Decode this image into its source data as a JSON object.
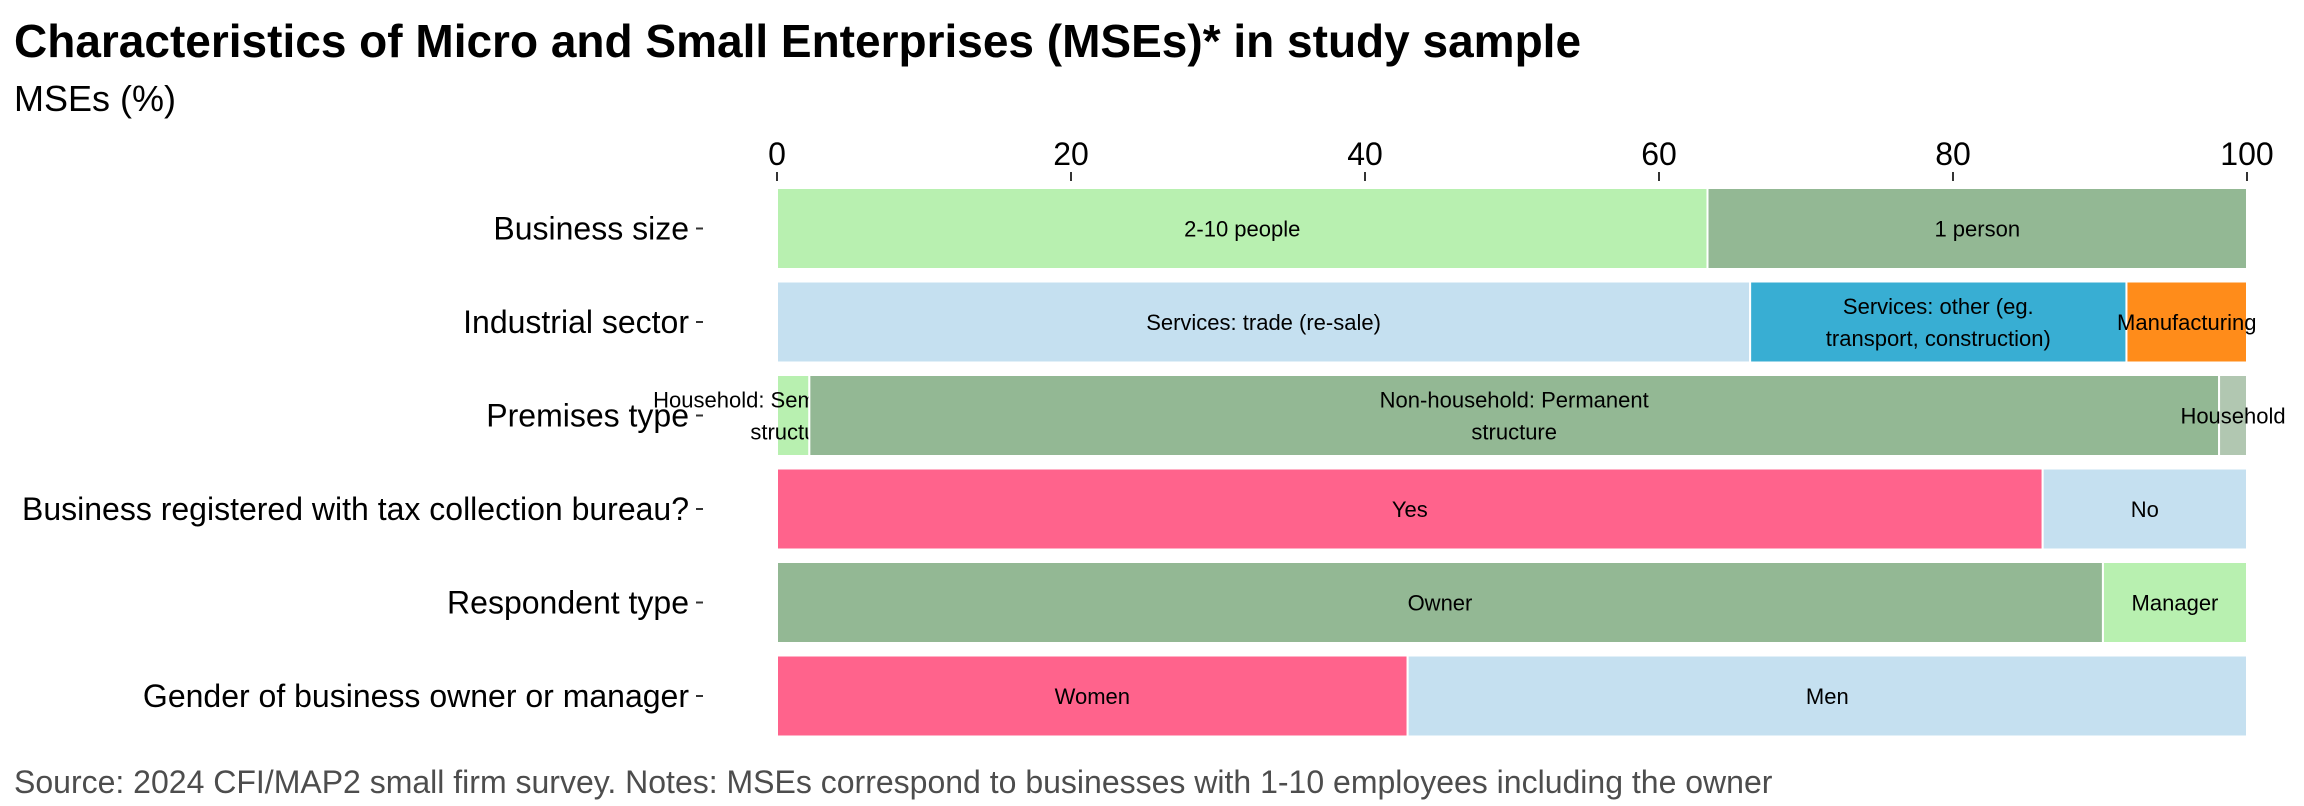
{
  "title": "Characteristics of Micro and Small Enterprises (MSEs)* in study sample",
  "subtitle": "MSEs (%)",
  "caption": "Source: 2024 CFI/MAP2 small firm survey. Notes: MSEs correspond to businesses with 1-10 employees including the owner",
  "chart_data": {
    "type": "bar",
    "orientation": "horizontal",
    "stacked": true,
    "xlim": [
      0,
      100
    ],
    "x_ticks": [
      0,
      20,
      40,
      60,
      80,
      100
    ],
    "x_axis_position": "top",
    "grid": false,
    "categories": [
      {
        "label": "Business size",
        "segments": [
          {
            "name": "2-10 people",
            "value": 63.3,
            "color": "#b8f0b0"
          },
          {
            "name": "1 person",
            "value": 36.7,
            "color": "#93b894"
          }
        ]
      },
      {
        "label": "Industrial sector",
        "segments": [
          {
            "name": "Services: trade (re-sale)",
            "value": 66.2,
            "color": "#c5e0f0"
          },
          {
            "name": "Services: other (eg. transport, construction)",
            "value": 25.6,
            "color": "#38aed3"
          },
          {
            "name": "Manufacturing",
            "value": 8.2,
            "color": "#ff8c1a"
          }
        ]
      },
      {
        "label": "Premises type",
        "segments": [
          {
            "name": "Household: Semi-permanent structure",
            "value": 2.2,
            "color": "#b8f0b0"
          },
          {
            "name": "Non-household: Permanent structure",
            "value": 95.9,
            "color": "#93b894"
          },
          {
            "name": "Household",
            "value": 1.9,
            "color": "#b1c7b1"
          }
        ]
      },
      {
        "label": "Business registered with tax collection bureau?",
        "segments": [
          {
            "name": "Yes",
            "value": 86.1,
            "color": "#ff638c"
          },
          {
            "name": "No",
            "value": 13.9,
            "color": "#c5e0f0"
          }
        ]
      },
      {
        "label": "Respondent type",
        "segments": [
          {
            "name": "Owner",
            "value": 90.2,
            "color": "#93b894"
          },
          {
            "name": "Manager",
            "value": 9.8,
            "color": "#b8f0b0"
          }
        ]
      },
      {
        "label": "Gender of business owner or manager",
        "segments": [
          {
            "name": "Women",
            "value": 42.9,
            "color": "#ff638c"
          },
          {
            "name": "Men",
            "value": 57.1,
            "color": "#c5e0f0"
          }
        ]
      }
    ]
  }
}
